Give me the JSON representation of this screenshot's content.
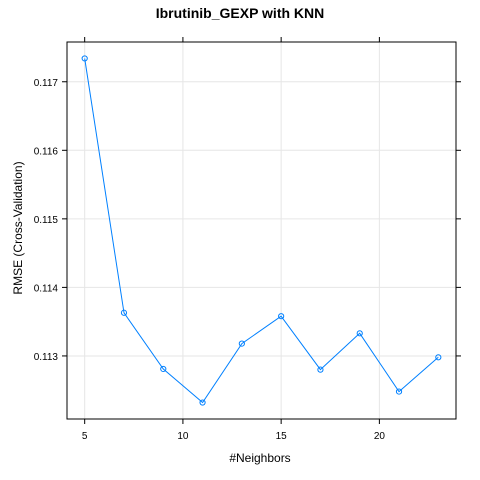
{
  "chart_data": {
    "type": "line",
    "title": "Ibrutinib_GEXP with KNN",
    "xlabel": "#Neighbors",
    "ylabel": "RMSE (Cross-Validation)",
    "x": [
      5,
      7,
      9,
      11,
      13,
      15,
      17,
      19,
      21,
      23
    ],
    "series": [
      {
        "values": [
          0.11734,
          0.11363,
          0.11281,
          0.11232,
          0.11318,
          0.11358,
          0.1128,
          0.11333,
          0.11248,
          0.11298
        ]
      }
    ],
    "xlim": [
      4.1,
      23.9
    ],
    "ylim": [
      0.11208,
      0.11758
    ],
    "xticks": [
      5,
      10,
      15,
      20
    ],
    "yticks": [
      0.113,
      0.114,
      0.115,
      0.116,
      0.117
    ],
    "ytick_labels": [
      "0.113",
      "0.114",
      "0.115",
      "0.116",
      "0.117"
    ],
    "grid": true,
    "colors": {
      "series": "#0080ff",
      "grid": "#e6e6e6",
      "axis": "#000000"
    }
  }
}
